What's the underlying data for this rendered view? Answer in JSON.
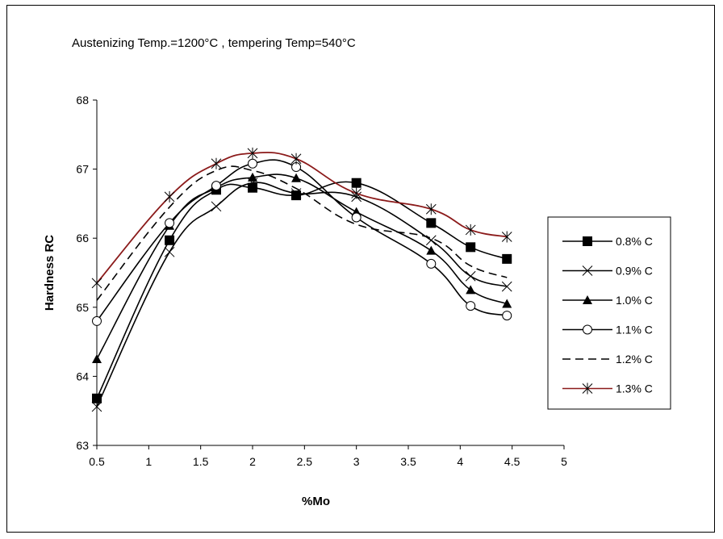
{
  "chart_data": {
    "type": "line",
    "title": "Austenizing Temp.=1200°C , tempering Temp=540°C",
    "xlabel": "%Mo",
    "ylabel": "Hardness RC",
    "xlim": [
      0.5,
      5
    ],
    "ylim": [
      63,
      68
    ],
    "x_ticks": [
      "0.5",
      "1",
      "1.5",
      "2",
      "2.5",
      "3",
      "3.5",
      "4",
      "4.5",
      "5"
    ],
    "y_ticks": [
      "63",
      "64",
      "65",
      "66",
      "67",
      "68"
    ],
    "grid": false,
    "legend_position": "right",
    "series": [
      {
        "name": "0.8% C",
        "marker": "square",
        "color": "#000000",
        "dash": "solid",
        "x": [
          0.5,
          1.2,
          1.65,
          2.0,
          2.42,
          3.0,
          3.72,
          4.1,
          4.45
        ],
        "y": [
          63.68,
          65.97,
          66.7,
          66.73,
          66.62,
          66.8,
          66.22,
          65.87,
          65.7
        ]
      },
      {
        "name": "0.9% C",
        "marker": "x",
        "color": "#000000",
        "dash": "solid",
        "x": [
          0.5,
          1.2,
          1.65,
          2.0,
          2.42,
          3.0,
          3.72,
          4.1,
          4.45
        ],
        "y": [
          63.56,
          65.8,
          66.46,
          66.8,
          66.65,
          66.6,
          65.97,
          65.45,
          65.3
        ]
      },
      {
        "name": "1.0% C",
        "marker": "triangle",
        "color": "#000000",
        "dash": "solid",
        "x": [
          0.5,
          1.2,
          1.65,
          2.0,
          2.42,
          3.0,
          3.72,
          4.1,
          4.45
        ],
        "y": [
          64.25,
          66.18,
          66.73,
          66.88,
          66.87,
          66.38,
          65.82,
          65.25,
          65.05
        ]
      },
      {
        "name": "1.1% C",
        "marker": "circle",
        "color": "#000000",
        "dash": "solid",
        "x": [
          0.5,
          1.2,
          1.65,
          2.0,
          2.42,
          3.0,
          3.72,
          4.1,
          4.45
        ],
        "y": [
          64.8,
          66.22,
          66.76,
          67.08,
          67.03,
          66.3,
          65.63,
          65.02,
          64.88
        ]
      },
      {
        "name": "1.2% C",
        "marker": "none",
        "color": "#000000",
        "dash": "dashed",
        "x": [
          0.5,
          1.2,
          1.65,
          2.0,
          2.42,
          3.0,
          3.72,
          4.1,
          4.45
        ],
        "y": [
          65.1,
          66.45,
          66.98,
          66.98,
          66.72,
          66.2,
          66.0,
          65.6,
          65.43
        ]
      },
      {
        "name": "1.3% C",
        "marker": "star",
        "color": "#8B1A1A",
        "dash": "solid",
        "x": [
          0.5,
          1.2,
          1.65,
          2.0,
          2.42,
          3.0,
          3.72,
          4.1,
          4.45
        ],
        "y": [
          65.35,
          66.6,
          67.08,
          67.23,
          67.15,
          66.65,
          66.42,
          66.12,
          66.02
        ]
      }
    ]
  }
}
